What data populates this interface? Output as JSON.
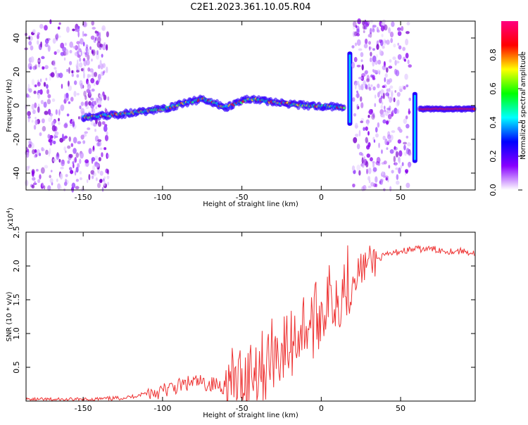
{
  "title": "C2E1.2023.361.10.05.R04",
  "colors": {
    "snr_line": "#ee3333",
    "axis": "#000000"
  },
  "chart_data": [
    {
      "type": "heatmap",
      "title": "C2E1.2023.361.10.05.R04",
      "xlabel": "Height of straight line (km)",
      "ylabel": "Frequency (Hz)",
      "xlim": [
        -186,
        97
      ],
      "ylim": [
        -50,
        50
      ],
      "xticks": [
        -150,
        -100,
        -50,
        0,
        50
      ],
      "yticks": [
        -40,
        -20,
        0,
        20,
        40
      ],
      "colorbar": {
        "label": "Normalized spectral amplitude",
        "range": [
          0,
          1
        ],
        "ticks": [
          0.0,
          0.2,
          0.4,
          0.6,
          0.8
        ],
        "colormap": [
          "#ffffff",
          "#8800ff",
          "#0000ff",
          "#00ffff",
          "#00ff00",
          "#ffff00",
          "#ff0000",
          "#ff0080"
        ]
      },
      "features": [
        {
          "kind": "noise",
          "x_range": [
            -186,
            -134
          ],
          "y_range": [
            -50,
            50
          ]
        },
        {
          "kind": "ridge",
          "points": [
            [
              -150,
              -7
            ],
            [
              -125,
              -5
            ],
            [
              -100,
              -2
            ],
            [
              -75,
              4
            ],
            [
              -60,
              -1
            ],
            [
              -45,
              4
            ],
            [
              -30,
              2
            ],
            [
              -10,
              0
            ],
            [
              15,
              -1
            ]
          ]
        },
        {
          "kind": "spike",
          "x": 18,
          "y_range": [
            -12,
            32
          ]
        },
        {
          "kind": "noise",
          "x_range": [
            20,
            56
          ],
          "y_range": [
            -50,
            50
          ]
        },
        {
          "kind": "spike",
          "x": 59,
          "y_range": [
            -34,
            8
          ]
        },
        {
          "kind": "ridge",
          "points": [
            [
              62,
              -2
            ],
            [
              97,
              -2
            ]
          ]
        }
      ]
    },
    {
      "type": "line",
      "xlabel": "Height of straight line (km)",
      "ylabel": "SNR (10 * v/v)",
      "multiplier": "(x10",
      "multiplier_exp": "4",
      "multiplier_close": ")",
      "xlim": [
        -186,
        97
      ],
      "ylim": [
        0,
        2.5
      ],
      "xticks": [
        -150,
        -100,
        -50,
        0,
        50
      ],
      "yticks": [
        0.5,
        1.0,
        1.5,
        2.0,
        2.5
      ],
      "series": [
        {
          "values_x": [
            -186,
            -150,
            -130,
            -120,
            -110,
            -100,
            -90,
            -80,
            -70,
            -60,
            -50,
            -45,
            -40,
            -35,
            -30,
            -25,
            -20,
            -15,
            -10,
            -5,
            0,
            5,
            10,
            15,
            20,
            25,
            30,
            40,
            50,
            60,
            70,
            80,
            90,
            97
          ],
          "values_y": [
            0.02,
            0.02,
            0.04,
            0.06,
            0.12,
            0.15,
            0.22,
            0.28,
            0.25,
            0.22,
            0.28,
            0.45,
            0.55,
            0.5,
            0.75,
            0.75,
            0.8,
            1.0,
            1.15,
            1.15,
            1.35,
            1.5,
            1.55,
            1.75,
            1.85,
            1.95,
            2.05,
            2.15,
            2.22,
            2.25,
            2.25,
            2.22,
            2.22,
            2.18
          ]
        }
      ]
    }
  ]
}
